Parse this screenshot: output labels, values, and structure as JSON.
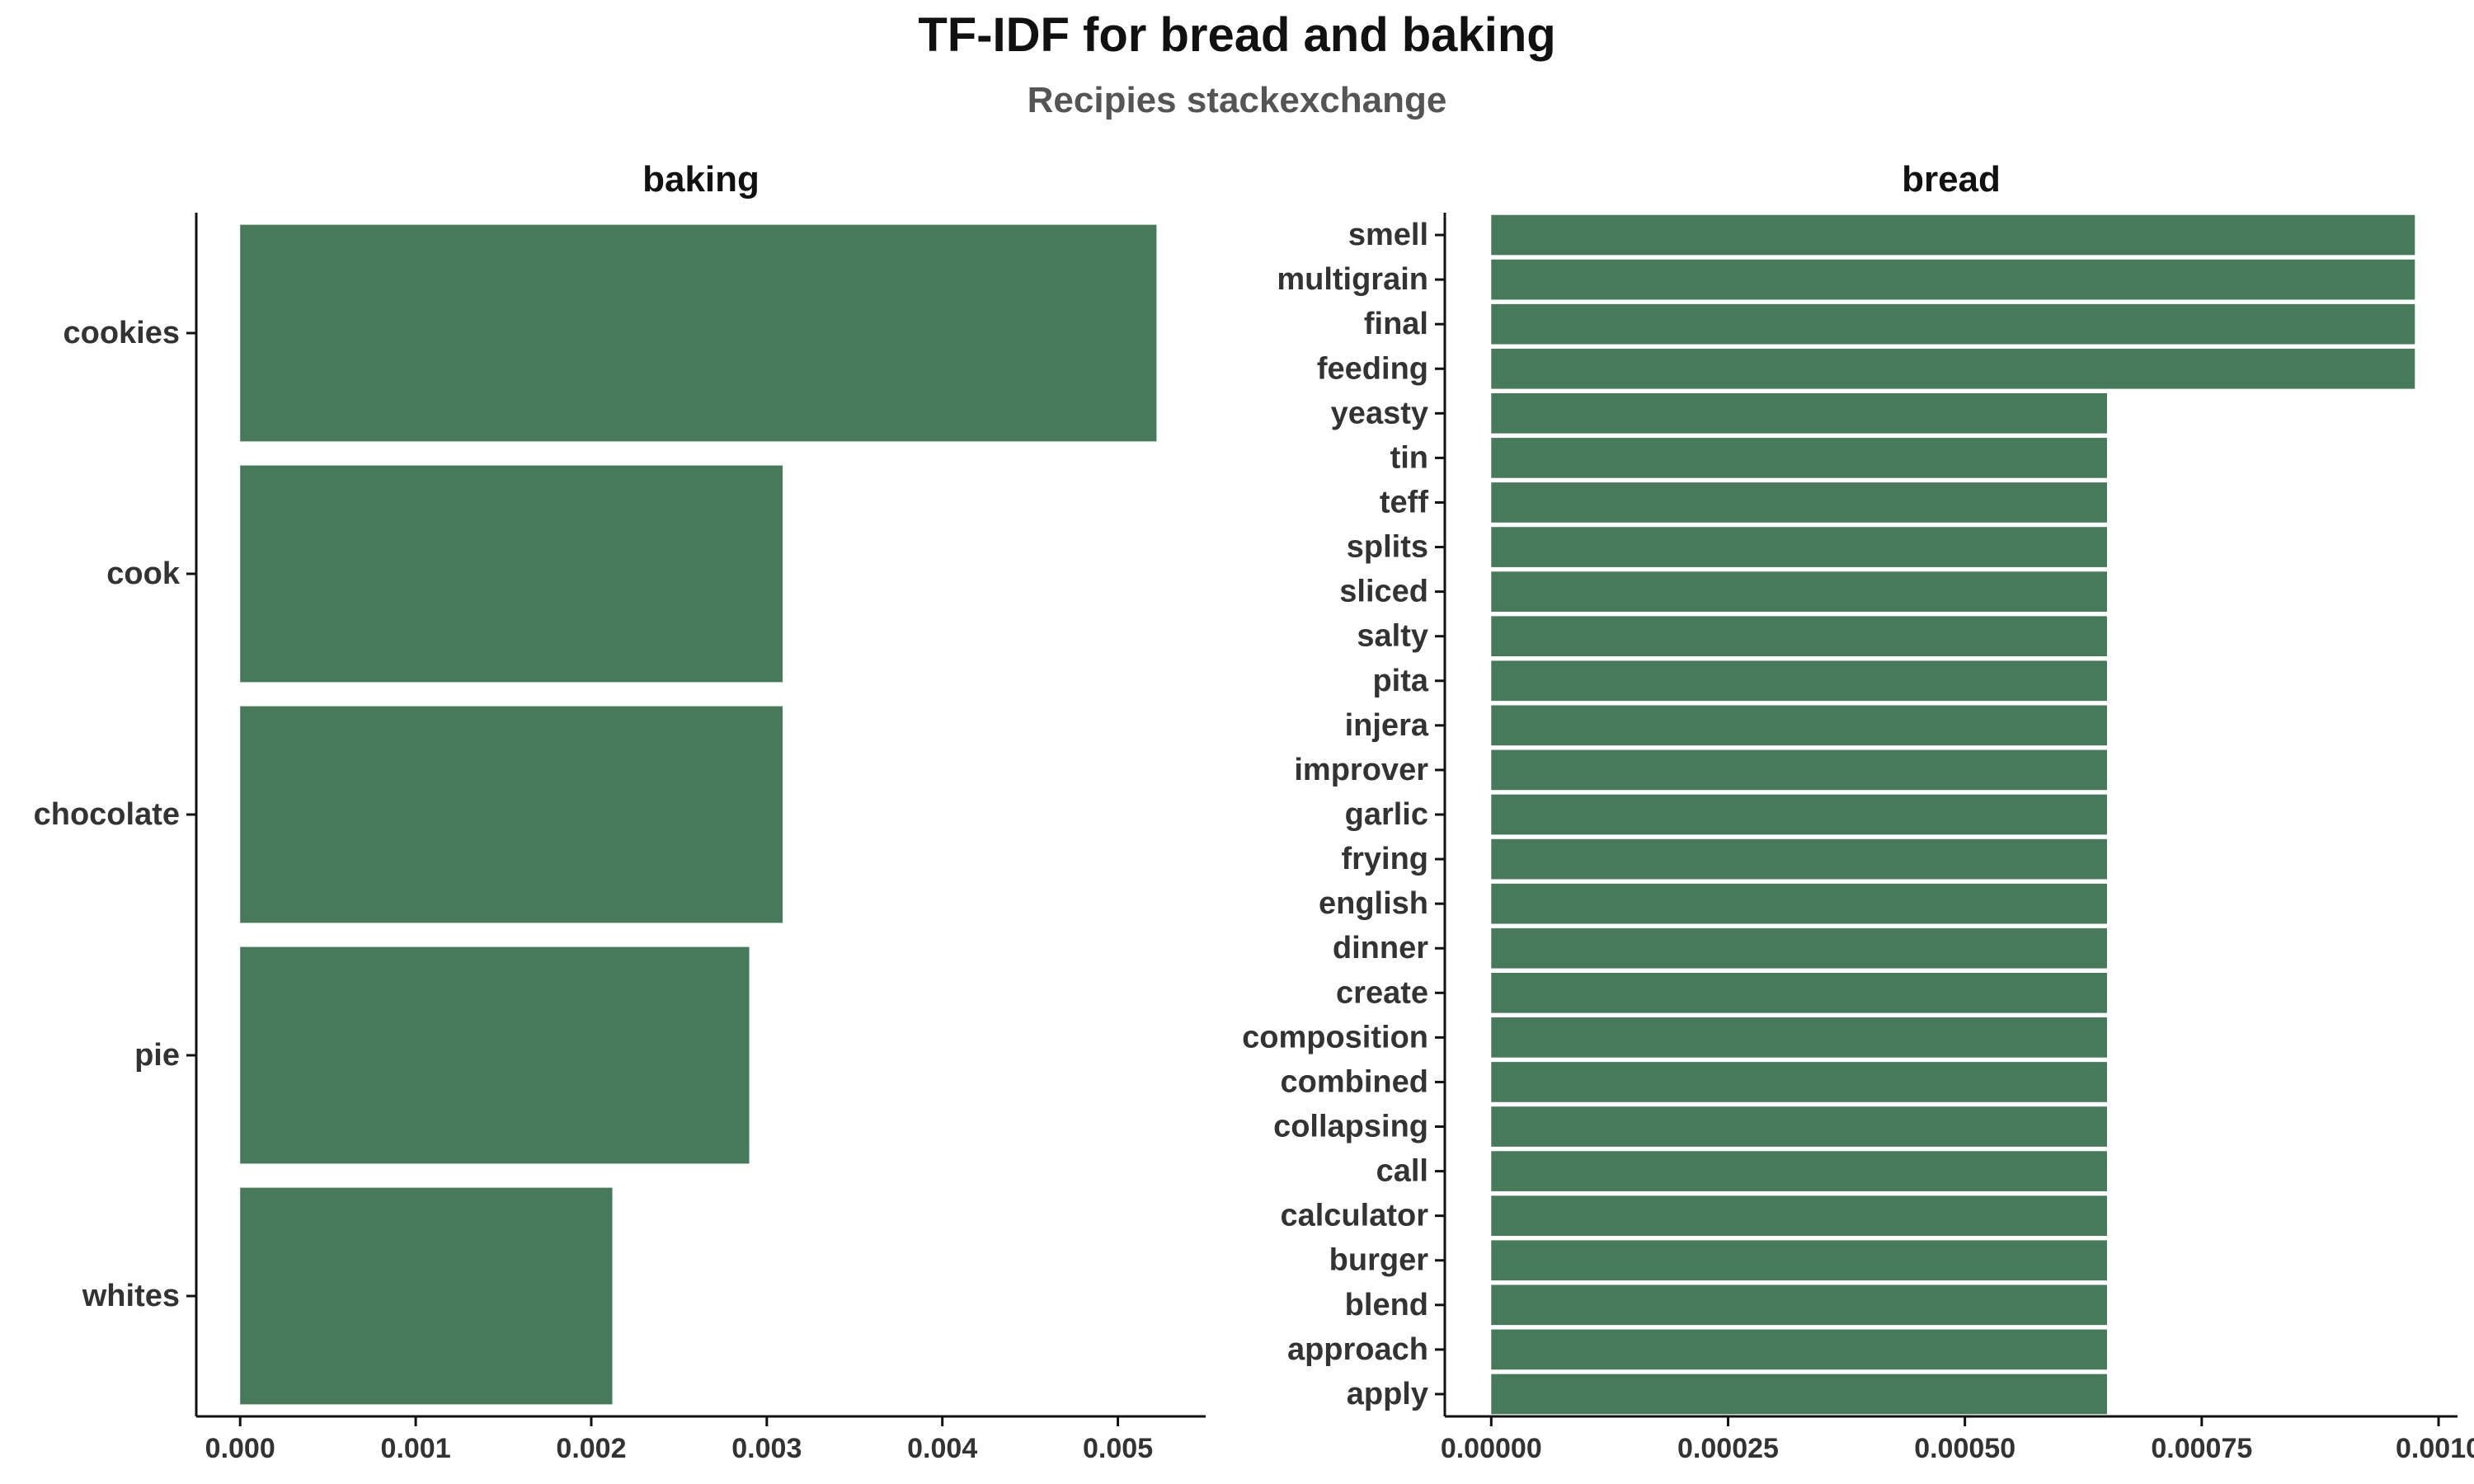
{
  "title": "TF-IDF for bread and baking",
  "subtitle": "Recipies stackexchange",
  "colors": {
    "bar": "#467a5b",
    "axis": "#111111",
    "text": "#333333"
  },
  "chart_data": [
    {
      "type": "bar",
      "orientation": "horizontal",
      "facet": "baking",
      "categories": [
        "cookies",
        "cook",
        "chocolate",
        "pie",
        "whites"
      ],
      "values": [
        0.00522,
        0.00309,
        0.00309,
        0.0029,
        0.00212
      ],
      "xlim": [
        -0.00025,
        0.0055
      ],
      "xticks": [
        "0.000",
        "0.001",
        "0.002",
        "0.003",
        "0.004",
        "0.005"
      ],
      "xtick_values": [
        0,
        0.001,
        0.002,
        0.003,
        0.004,
        0.005
      ],
      "grid": false
    },
    {
      "type": "bar",
      "orientation": "horizontal",
      "facet": "bread",
      "categories": [
        "smell",
        "multigrain",
        "final",
        "feeding",
        "yeasty",
        "tin",
        "teff",
        "splits",
        "sliced",
        "salty",
        "pita",
        "injera",
        "improver",
        "garlic",
        "frying",
        "english",
        "dinner",
        "create",
        "composition",
        "combined",
        "collapsing",
        "call",
        "calculator",
        "burger",
        "blend",
        "approach",
        "apply"
      ],
      "values": [
        0.000975,
        0.000975,
        0.000975,
        0.000975,
        0.00065,
        0.00065,
        0.00065,
        0.00065,
        0.00065,
        0.00065,
        0.00065,
        0.00065,
        0.00065,
        0.00065,
        0.00065,
        0.00065,
        0.00065,
        0.00065,
        0.00065,
        0.00065,
        0.00065,
        0.00065,
        0.00065,
        0.00065,
        0.00065,
        0.00065,
        0.00065
      ],
      "xlim": [
        -4.9e-05,
        0.00102
      ],
      "xticks": [
        "0.00000",
        "0.00025",
        "0.00050",
        "0.00075",
        "0.0010"
      ],
      "xtick_values": [
        0,
        0.00025,
        0.0005,
        0.00075,
        0.001
      ],
      "grid": false
    }
  ]
}
